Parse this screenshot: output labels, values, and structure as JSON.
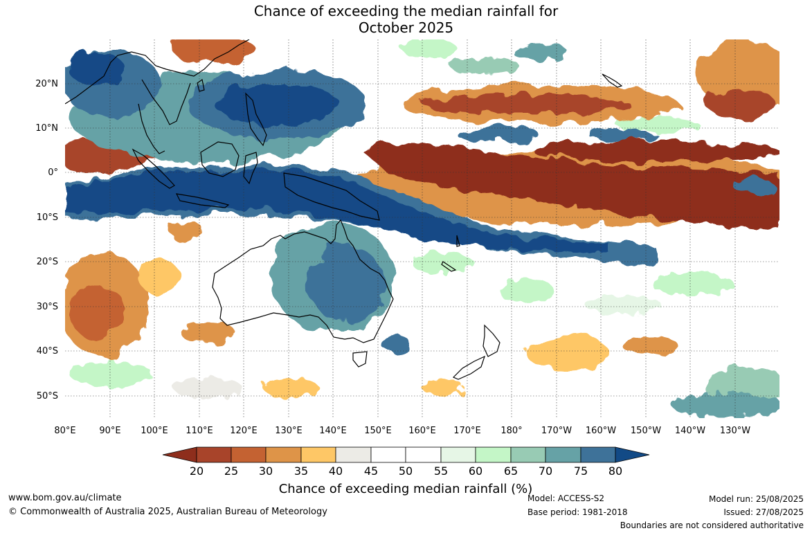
{
  "title": {
    "line1": "Chance of exceeding the median rainfall for",
    "line2": "October 2025"
  },
  "map": {
    "lat_labels": [
      "20°N",
      "10°N",
      "0°",
      "10°S",
      "20°S",
      "30°S",
      "40°S",
      "50°S"
    ],
    "lon_labels": [
      "80°E",
      "90°E",
      "100°E",
      "110°E",
      "120°E",
      "130°E",
      "140°E",
      "150°E",
      "160°E",
      "170°E",
      "180°",
      "170°W",
      "160°W",
      "150°W",
      "140°W",
      "130°W"
    ]
  },
  "legend": {
    "ticks": [
      "20",
      "25",
      "30",
      "35",
      "40",
      "45",
      "50",
      "55",
      "60",
      "65",
      "70",
      "75",
      "80"
    ],
    "colors": {
      "below20": "#8e2e1c",
      "b20_25": "#a8442a",
      "b25_30": "#c46232",
      "b30_35": "#de9448",
      "b35_40": "#fec766",
      "b40_45": "#ecebe6",
      "b45_50": "#ffffff",
      "b50_55": "#ffffff",
      "b55_60": "#e6f6e6",
      "b60_65": "#c4f6c7",
      "b65_70": "#98cbb4",
      "b70_75": "#66a2a6",
      "b75_80": "#3e7299",
      "above80": "#124a86"
    },
    "title": "Chance of exceeding median rainfall (%)"
  },
  "footer": {
    "url": "www.bom.gov.au/climate",
    "copyright": "© Commonwealth of Australia 2025, Australian Bureau of Meteorology",
    "model": "Model: ACCESS-S2",
    "base_period": "Base period: 1981-2018",
    "model_run": "Model run: 25/08/2025",
    "issued": "Issued: 27/08/2025",
    "disclaimer": "Boundaries are not considered authoritative"
  }
}
